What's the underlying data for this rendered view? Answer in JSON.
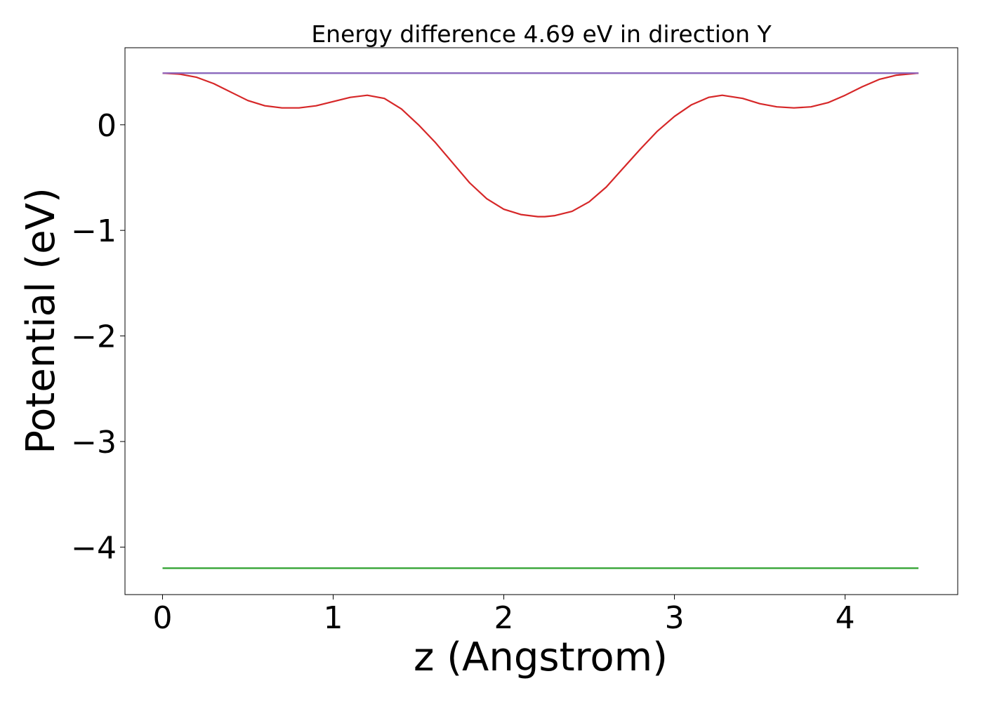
{
  "chart_data": {
    "type": "line",
    "title": "Energy difference 4.69 eV in direction Y",
    "xlabel": "z (Angstrom)",
    "ylabel": "Potential (eV)",
    "xlim": [
      -0.22,
      4.66
    ],
    "ylim": [
      -4.45,
      0.73
    ],
    "xticks": [
      0,
      1,
      2,
      3,
      4
    ],
    "yticks": [
      0,
      -1,
      -2,
      -3,
      -4
    ],
    "xtick_labels": [
      "0",
      "1",
      "2",
      "3",
      "4"
    ],
    "ytick_labels": [
      "0",
      "−1",
      "−2",
      "−3",
      "−4"
    ],
    "grid": false,
    "legend": false,
    "series": [
      {
        "color": "#1f77b4",
        "x": [
          0,
          4.43
        ],
        "y": [
          0.49,
          0.49
        ]
      },
      {
        "color": "#2ca02c",
        "x": [
          0,
          4.43
        ],
        "y": [
          -4.2,
          -4.2
        ]
      },
      {
        "color": "#d62728",
        "x": [
          0,
          0.1,
          0.2,
          0.3,
          0.4,
          0.5,
          0.6,
          0.7,
          0.8,
          0.9,
          1.0,
          1.1,
          1.2,
          1.3,
          1.4,
          1.5,
          1.6,
          1.7,
          1.8,
          1.9,
          2.0,
          2.1,
          2.2,
          2.24,
          2.3,
          2.4,
          2.5,
          2.6,
          2.7,
          2.8,
          2.9,
          3.0,
          3.1,
          3.2,
          3.28,
          3.4,
          3.5,
          3.6,
          3.7,
          3.8,
          3.9,
          4.0,
          4.1,
          4.2,
          4.3,
          4.43
        ],
        "y": [
          0.49,
          0.48,
          0.45,
          0.39,
          0.31,
          0.23,
          0.18,
          0.16,
          0.16,
          0.18,
          0.22,
          0.26,
          0.28,
          0.25,
          0.15,
          0.0,
          -0.17,
          -0.36,
          -0.55,
          -0.7,
          -0.8,
          -0.85,
          -0.87,
          -0.87,
          -0.86,
          -0.82,
          -0.73,
          -0.59,
          -0.41,
          -0.23,
          -0.06,
          0.08,
          0.19,
          0.26,
          0.28,
          0.25,
          0.2,
          0.17,
          0.16,
          0.17,
          0.21,
          0.28,
          0.36,
          0.43,
          0.47,
          0.49
        ]
      },
      {
        "color": "#9467bd",
        "x": [
          0,
          0.05,
          4.38,
          4.43
        ],
        "y": [
          0.49,
          0.489,
          0.489,
          0.49
        ]
      }
    ]
  }
}
